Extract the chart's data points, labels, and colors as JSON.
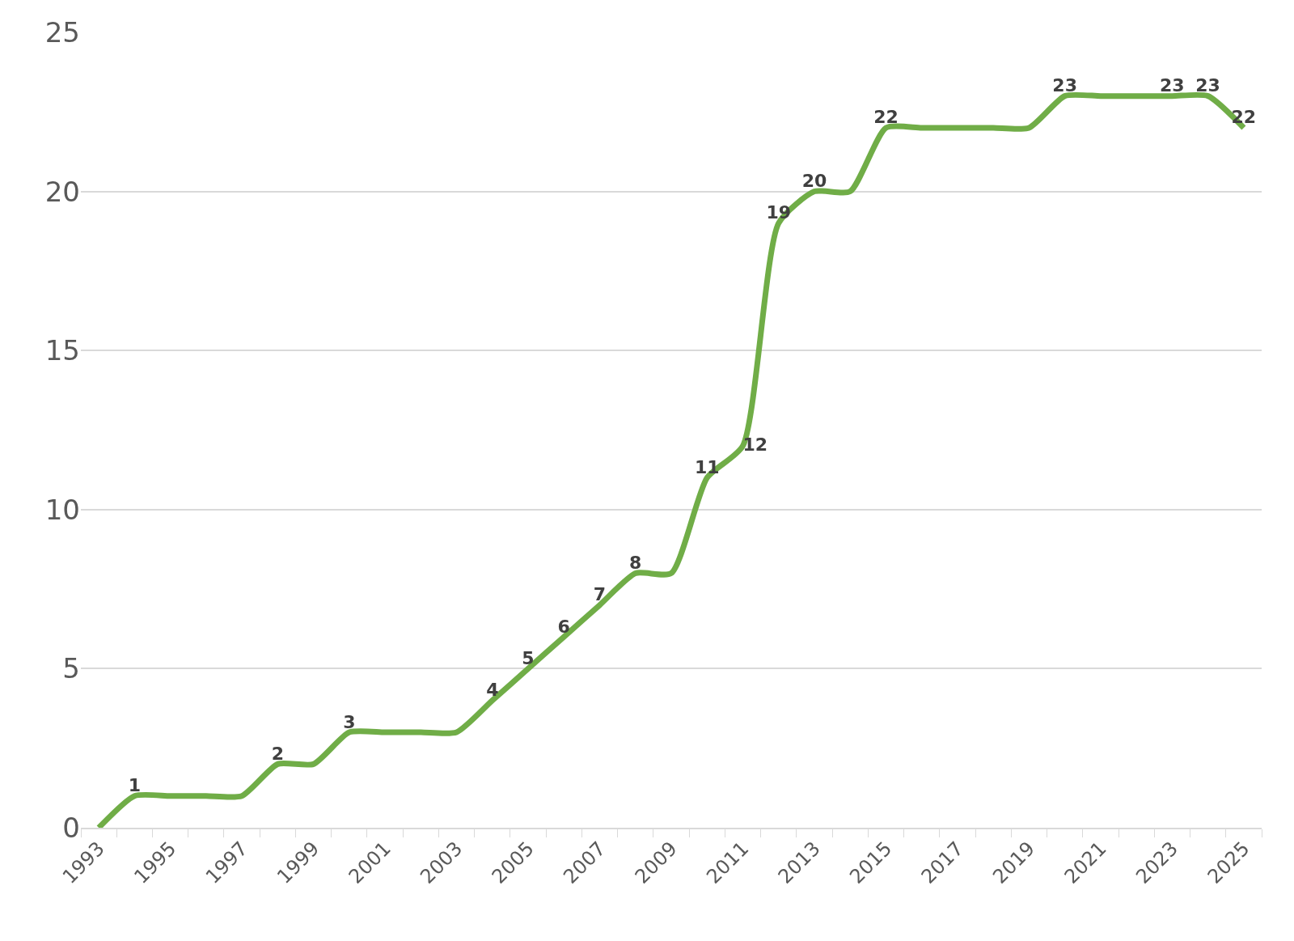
{
  "chart_data": {
    "type": "line",
    "categories": [
      "1993",
      null,
      "1995",
      null,
      "1997",
      null,
      "1999",
      null,
      "2001",
      null,
      "2003",
      null,
      "2005",
      null,
      "2007",
      null,
      "2009",
      null,
      "2011",
      null,
      "2013",
      null,
      "2015",
      null,
      "2017",
      null,
      "2019",
      null,
      "2021",
      null,
      "2023",
      null,
      "2025"
    ],
    "series": [
      {
        "color": "#70ad47",
        "values": [
          0,
          1,
          1,
          1,
          1,
          2,
          2,
          3,
          3,
          3,
          3,
          4,
          5,
          6,
          7,
          8,
          8,
          11,
          12,
          19,
          20,
          20,
          22,
          22,
          22,
          22,
          22,
          23,
          23,
          23,
          23,
          23,
          22
        ],
        "value_labels": [
          null,
          "1",
          null,
          null,
          null,
          "2",
          null,
          "3",
          null,
          null,
          null,
          "4",
          "5",
          "6",
          "7",
          "8",
          null,
          "11",
          "12",
          "19",
          "20",
          null,
          "22",
          null,
          null,
          null,
          null,
          "23",
          null,
          null,
          "23",
          "23",
          "22"
        ]
      }
    ],
    "ylim": [
      0,
      25
    ],
    "yticks": [
      0,
      5,
      10,
      15,
      20,
      25
    ],
    "grid": "y",
    "legend": false,
    "marker": "none",
    "line_style": "solid"
  }
}
